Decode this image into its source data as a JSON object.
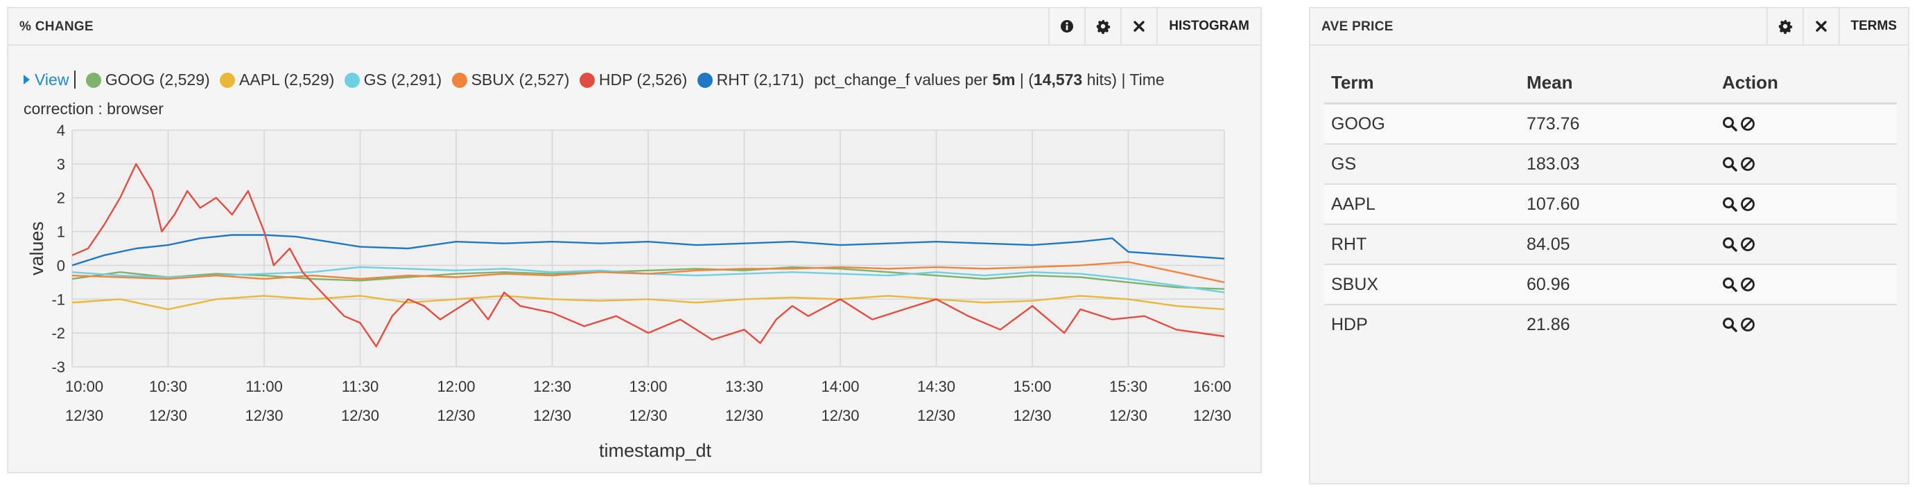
{
  "histogram_panel": {
    "title": "% CHANGE",
    "buttons": {
      "histogram_label": "HISTOGRAM"
    },
    "legend": {
      "view_label": "View",
      "series": [
        {
          "name": "GOOG",
          "count": "(2,529)",
          "color": "#7eb26d"
        },
        {
          "name": "AAPL",
          "count": "(2,529)",
          "color": "#eab839"
        },
        {
          "name": "GS",
          "count": "(2,291)",
          "color": "#6ed0e0"
        },
        {
          "name": "SBUX",
          "count": "(2,527)",
          "color": "#ef843c"
        },
        {
          "name": "HDP",
          "count": "(2,526)",
          "color": "#e24d42"
        },
        {
          "name": "RHT",
          "count": "(2,171)",
          "color": "#1f78c1"
        }
      ],
      "summary_prefix": "pct_change_f values per ",
      "interval": "5m",
      "summary_mid": " | (",
      "hits": "14,573",
      "summary_suffix": " hits) | Time correction : browser"
    }
  },
  "chart_data": {
    "type": "line",
    "ylabel": "values",
    "xlabel": "timestamp_dt",
    "ylim": [
      -3,
      4
    ],
    "y_ticks": [
      "4",
      "3",
      "2",
      "1",
      "0",
      "-1",
      "-2",
      "-3"
    ],
    "x_ticks": [
      {
        "time": "10:00",
        "date": "12/30"
      },
      {
        "time": "10:30",
        "date": "12/30"
      },
      {
        "time": "11:00",
        "date": "12/30"
      },
      {
        "time": "11:30",
        "date": "12/30"
      },
      {
        "time": "12:00",
        "date": "12/30"
      },
      {
        "time": "12:30",
        "date": "12/30"
      },
      {
        "time": "13:00",
        "date": "12/30"
      },
      {
        "time": "13:30",
        "date": "12/30"
      },
      {
        "time": "14:00",
        "date": "12/30"
      },
      {
        "time": "14:30",
        "date": "12/30"
      },
      {
        "time": "15:00",
        "date": "12/30"
      },
      {
        "time": "15:30",
        "date": "12/30"
      },
      {
        "time": "16:00",
        "date": "12/30"
      }
    ],
    "x_range": [
      "10:00",
      "16:00"
    ],
    "grid": true,
    "series": [
      {
        "name": "RHT",
        "color": "#1f78c1",
        "points": [
          [
            "10:00",
            0.0
          ],
          [
            "10:10",
            0.3
          ],
          [
            "10:20",
            0.5
          ],
          [
            "10:30",
            0.6
          ],
          [
            "10:40",
            0.8
          ],
          [
            "10:50",
            0.9
          ],
          [
            "11:00",
            0.9
          ],
          [
            "11:10",
            0.85
          ],
          [
            "11:20",
            0.7
          ],
          [
            "11:30",
            0.55
          ],
          [
            "11:45",
            0.5
          ],
          [
            "12:00",
            0.7
          ],
          [
            "12:15",
            0.65
          ],
          [
            "12:30",
            0.7
          ],
          [
            "12:45",
            0.65
          ],
          [
            "13:00",
            0.7
          ],
          [
            "13:15",
            0.6
          ],
          [
            "13:30",
            0.65
          ],
          [
            "13:45",
            0.7
          ],
          [
            "14:00",
            0.6
          ],
          [
            "14:15",
            0.65
          ],
          [
            "14:30",
            0.7
          ],
          [
            "14:45",
            0.65
          ],
          [
            "15:00",
            0.6
          ],
          [
            "15:15",
            0.7
          ],
          [
            "15:25",
            0.8
          ],
          [
            "15:30",
            0.4
          ],
          [
            "15:45",
            0.3
          ],
          [
            "16:00",
            0.2
          ]
        ]
      },
      {
        "name": "GOOG",
        "color": "#7eb26d",
        "points": [
          [
            "10:00",
            -0.4
          ],
          [
            "10:15",
            -0.2
          ],
          [
            "10:30",
            -0.35
          ],
          [
            "10:45",
            -0.25
          ],
          [
            "11:00",
            -0.3
          ],
          [
            "11:15",
            -0.4
          ],
          [
            "11:30",
            -0.45
          ],
          [
            "11:45",
            -0.35
          ],
          [
            "12:00",
            -0.25
          ],
          [
            "12:15",
            -0.2
          ],
          [
            "12:30",
            -0.25
          ],
          [
            "12:45",
            -0.2
          ],
          [
            "13:00",
            -0.15
          ],
          [
            "13:15",
            -0.1
          ],
          [
            "13:30",
            -0.15
          ],
          [
            "13:45",
            -0.05
          ],
          [
            "14:00",
            -0.1
          ],
          [
            "14:15",
            -0.2
          ],
          [
            "14:30",
            -0.3
          ],
          [
            "14:45",
            -0.4
          ],
          [
            "15:00",
            -0.3
          ],
          [
            "15:15",
            -0.35
          ],
          [
            "15:30",
            -0.5
          ],
          [
            "15:45",
            -0.65
          ],
          [
            "16:00",
            -0.7
          ]
        ]
      },
      {
        "name": "GS",
        "color": "#6ed0e0",
        "points": [
          [
            "10:00",
            -0.2
          ],
          [
            "10:15",
            -0.3
          ],
          [
            "10:30",
            -0.35
          ],
          [
            "10:45",
            -0.3
          ],
          [
            "11:00",
            -0.25
          ],
          [
            "11:15",
            -0.2
          ],
          [
            "11:30",
            -0.05
          ],
          [
            "11:45",
            -0.1
          ],
          [
            "12:00",
            -0.15
          ],
          [
            "12:15",
            -0.1
          ],
          [
            "12:30",
            -0.2
          ],
          [
            "12:45",
            -0.15
          ],
          [
            "13:00",
            -0.25
          ],
          [
            "13:15",
            -0.3
          ],
          [
            "13:30",
            -0.25
          ],
          [
            "13:45",
            -0.2
          ],
          [
            "14:00",
            -0.25
          ],
          [
            "14:15",
            -0.3
          ],
          [
            "14:30",
            -0.2
          ],
          [
            "14:45",
            -0.3
          ],
          [
            "15:00",
            -0.2
          ],
          [
            "15:15",
            -0.25
          ],
          [
            "15:30",
            -0.4
          ],
          [
            "15:45",
            -0.6
          ],
          [
            "16:00",
            -0.8
          ]
        ]
      },
      {
        "name": "SBUX",
        "color": "#ef843c",
        "points": [
          [
            "10:00",
            -0.3
          ],
          [
            "10:15",
            -0.35
          ],
          [
            "10:30",
            -0.4
          ],
          [
            "10:45",
            -0.3
          ],
          [
            "11:00",
            -0.4
          ],
          [
            "11:15",
            -0.3
          ],
          [
            "11:30",
            -0.4
          ],
          [
            "11:45",
            -0.3
          ],
          [
            "12:00",
            -0.35
          ],
          [
            "12:15",
            -0.25
          ],
          [
            "12:30",
            -0.3
          ],
          [
            "12:45",
            -0.2
          ],
          [
            "13:00",
            -0.25
          ],
          [
            "13:15",
            -0.15
          ],
          [
            "13:30",
            -0.1
          ],
          [
            "13:45",
            -0.1
          ],
          [
            "14:00",
            -0.05
          ],
          [
            "14:15",
            -0.1
          ],
          [
            "14:30",
            -0.05
          ],
          [
            "14:45",
            -0.1
          ],
          [
            "15:00",
            -0.05
          ],
          [
            "15:15",
            0.0
          ],
          [
            "15:30",
            0.1
          ],
          [
            "15:45",
            -0.2
          ],
          [
            "16:00",
            -0.5
          ]
        ]
      },
      {
        "name": "AAPL",
        "color": "#eab839",
        "points": [
          [
            "10:00",
            -1.1
          ],
          [
            "10:15",
            -1.0
          ],
          [
            "10:30",
            -1.3
          ],
          [
            "10:45",
            -1.0
          ],
          [
            "11:00",
            -0.9
          ],
          [
            "11:15",
            -1.0
          ],
          [
            "11:30",
            -0.9
          ],
          [
            "11:45",
            -1.1
          ],
          [
            "12:00",
            -1.0
          ],
          [
            "12:15",
            -0.9
          ],
          [
            "12:30",
            -1.0
          ],
          [
            "12:45",
            -1.05
          ],
          [
            "13:00",
            -1.0
          ],
          [
            "13:15",
            -1.1
          ],
          [
            "13:30",
            -1.0
          ],
          [
            "13:45",
            -0.95
          ],
          [
            "14:00",
            -1.0
          ],
          [
            "14:15",
            -0.9
          ],
          [
            "14:30",
            -1.0
          ],
          [
            "14:45",
            -1.1
          ],
          [
            "15:00",
            -1.05
          ],
          [
            "15:15",
            -0.9
          ],
          [
            "15:30",
            -1.0
          ],
          [
            "15:45",
            -1.2
          ],
          [
            "16:00",
            -1.3
          ]
        ]
      },
      {
        "name": "HDP",
        "color": "#e24d42",
        "points": [
          [
            "10:00",
            0.3
          ],
          [
            "10:05",
            0.5
          ],
          [
            "10:10",
            1.2
          ],
          [
            "10:15",
            2.0
          ],
          [
            "10:20",
            3.0
          ],
          [
            "10:25",
            2.2
          ],
          [
            "10:28",
            1.0
          ],
          [
            "10:32",
            1.5
          ],
          [
            "10:36",
            2.2
          ],
          [
            "10:40",
            1.7
          ],
          [
            "10:45",
            2.0
          ],
          [
            "10:50",
            1.5
          ],
          [
            "10:55",
            2.2
          ],
          [
            "11:00",
            1.0
          ],
          [
            "11:03",
            0.0
          ],
          [
            "11:08",
            0.5
          ],
          [
            "11:12",
            -0.2
          ],
          [
            "11:20",
            -1.0
          ],
          [
            "11:25",
            -1.5
          ],
          [
            "11:30",
            -1.7
          ],
          [
            "11:35",
            -2.4
          ],
          [
            "11:40",
            -1.5
          ],
          [
            "11:45",
            -1.0
          ],
          [
            "11:50",
            -1.2
          ],
          [
            "11:55",
            -1.6
          ],
          [
            "12:00",
            -1.3
          ],
          [
            "12:05",
            -1.0
          ],
          [
            "12:10",
            -1.6
          ],
          [
            "12:15",
            -0.8
          ],
          [
            "12:20",
            -1.2
          ],
          [
            "12:30",
            -1.4
          ],
          [
            "12:40",
            -1.8
          ],
          [
            "12:50",
            -1.5
          ],
          [
            "13:00",
            -2.0
          ],
          [
            "13:10",
            -1.6
          ],
          [
            "13:20",
            -2.2
          ],
          [
            "13:30",
            -1.9
          ],
          [
            "13:35",
            -2.3
          ],
          [
            "13:40",
            -1.6
          ],
          [
            "13:45",
            -1.2
          ],
          [
            "13:50",
            -1.5
          ],
          [
            "14:00",
            -1.0
          ],
          [
            "14:10",
            -1.6
          ],
          [
            "14:20",
            -1.3
          ],
          [
            "14:30",
            -1.0
          ],
          [
            "14:40",
            -1.5
          ],
          [
            "14:50",
            -1.9
          ],
          [
            "15:00",
            -1.2
          ],
          [
            "15:10",
            -2.0
          ],
          [
            "15:15",
            -1.3
          ],
          [
            "15:25",
            -1.6
          ],
          [
            "15:35",
            -1.5
          ],
          [
            "15:45",
            -1.9
          ],
          [
            "16:00",
            -2.1
          ]
        ]
      }
    ]
  },
  "terms_panel": {
    "title": "AVE PRICE",
    "buttons": {
      "terms_label": "TERMS"
    },
    "columns": [
      "Term",
      "Mean",
      "Action"
    ],
    "rows": [
      {
        "term": "GOOG",
        "mean": "773.76"
      },
      {
        "term": "GS",
        "mean": "183.03"
      },
      {
        "term": "AAPL",
        "mean": "107.60"
      },
      {
        "term": "RHT",
        "mean": "84.05"
      },
      {
        "term": "SBUX",
        "mean": "60.96"
      },
      {
        "term": "HDP",
        "mean": "21.86"
      }
    ]
  },
  "icons": {
    "info": "info-icon",
    "settings": "gear-icon",
    "close": "close-icon",
    "search": "search-icon",
    "exclude": "ban-icon"
  }
}
